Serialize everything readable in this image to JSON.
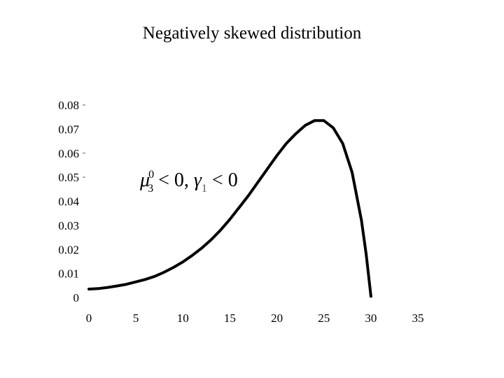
{
  "chart_data": {
    "type": "line",
    "title": "Negatively skewed distribution",
    "xlabel": "",
    "ylabel": "",
    "xlim": [
      0,
      35
    ],
    "ylim": [
      0,
      0.08
    ],
    "x_ticks": [
      "0",
      "5",
      "10",
      "15",
      "20",
      "25",
      "30",
      "35"
    ],
    "y_ticks": [
      "0",
      "0.01",
      "0.02",
      "0.03",
      "0.04",
      "0.05",
      "0.06",
      "0.07",
      "0.08"
    ],
    "grid": false,
    "annotation": {
      "mu_symbol": "μ",
      "mu_sub": "3",
      "mu_sup": "0",
      "middle": " < 0, ",
      "gamma_symbol": "γ",
      "gamma_sub": "1",
      "end": " < 0"
    },
    "series": [
      {
        "line_color": "#000000",
        "x": [
          0,
          1,
          2,
          3,
          4,
          5,
          6,
          7,
          8,
          9,
          10,
          11,
          12,
          13,
          14,
          15,
          16,
          17,
          18,
          19,
          20,
          21,
          22,
          23,
          24,
          25,
          26,
          27,
          28,
          28.5,
          29,
          29.5,
          30
        ],
        "y": [
          0.0035,
          0.0037,
          0.0042,
          0.0048,
          0.0055,
          0.0065,
          0.0075,
          0.0088,
          0.0105,
          0.0125,
          0.0148,
          0.0175,
          0.0205,
          0.024,
          0.028,
          0.0325,
          0.0375,
          0.0425,
          0.048,
          0.0535,
          0.059,
          0.064,
          0.068,
          0.0715,
          0.0735,
          0.0735,
          0.0705,
          0.064,
          0.052,
          0.042,
          0.032,
          0.018,
          0.0005
        ]
      }
    ]
  }
}
